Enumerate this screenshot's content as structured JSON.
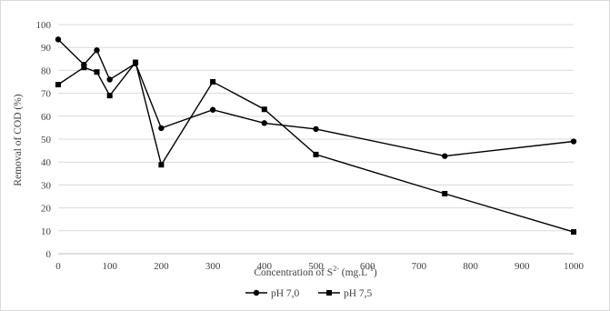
{
  "chart_data": {
    "type": "line",
    "xlabel": "Concentration of S",
    "xlabel_sup": "2-",
    "xlabel_unit_pre": " (mg.L",
    "xlabel_unit_sup": "-1",
    "xlabel_unit_post": ")",
    "ylabel": "Removal of COD (%)",
    "xlim": [
      0,
      1000
    ],
    "ylim": [
      0,
      100
    ],
    "x_ticks": [
      "0",
      "100",
      "200",
      "300",
      "400",
      "500",
      "600",
      "700",
      "800",
      "900",
      "1000"
    ],
    "y_ticks": [
      "0",
      "10",
      "20",
      "30",
      "40",
      "50",
      "60",
      "70",
      "80",
      "90",
      "100"
    ],
    "grid": "horizontal",
    "legend_position": "bottom",
    "series": [
      {
        "name": "pH 7,0",
        "marker": "circle",
        "color": "#000000",
        "x": [
          0,
          50,
          75,
          100,
          150,
          200,
          300,
          400,
          500,
          750,
          1000
        ],
        "y": [
          93.5,
          82.5,
          88.8,
          76,
          83,
          54.8,
          62.8,
          57,
          54.4,
          42.6,
          49
        ]
      },
      {
        "name": "pH 7,5",
        "marker": "square",
        "color": "#000000",
        "x": [
          0,
          50,
          75,
          100,
          150,
          200,
          300,
          400,
          500,
          750,
          1000
        ],
        "y": [
          73.8,
          81.3,
          79.3,
          69,
          83.5,
          38.8,
          75,
          63,
          43.3,
          26.2,
          9.5
        ]
      }
    ]
  }
}
